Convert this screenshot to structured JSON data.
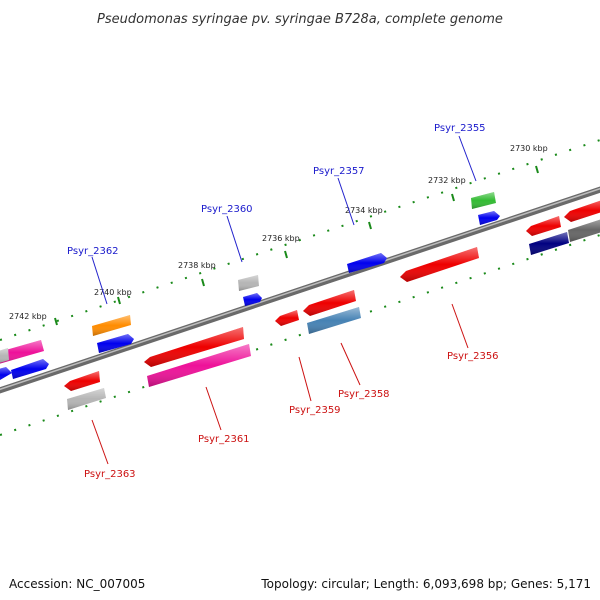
{
  "title": "Pseudomonas syringae pv. syringae B728a, complete genome",
  "footer": {
    "accession": "Accession: NC_007005",
    "summary": "Topology: circular; Length: 6,093,698 bp; Genes: 5,171"
  },
  "ticks": [
    "2742 kbp",
    "2740 kbp",
    "2738 kbp",
    "2736 kbp",
    "2734 kbp",
    "2732 kbp",
    "2730 kbp"
  ],
  "gene_labels": [
    "Psyr_2362",
    "Psyr_2360",
    "Psyr_2357",
    "Psyr_2355",
    "Psyr_2363",
    "Psyr_2361",
    "Psyr_2359",
    "Psyr_2358",
    "Psyr_2356"
  ],
  "colors": {
    "label_forward": "#1a1acc",
    "label_reverse": "#cc1111",
    "backbone": "#777777",
    "tick": "#1a8a1a"
  }
}
